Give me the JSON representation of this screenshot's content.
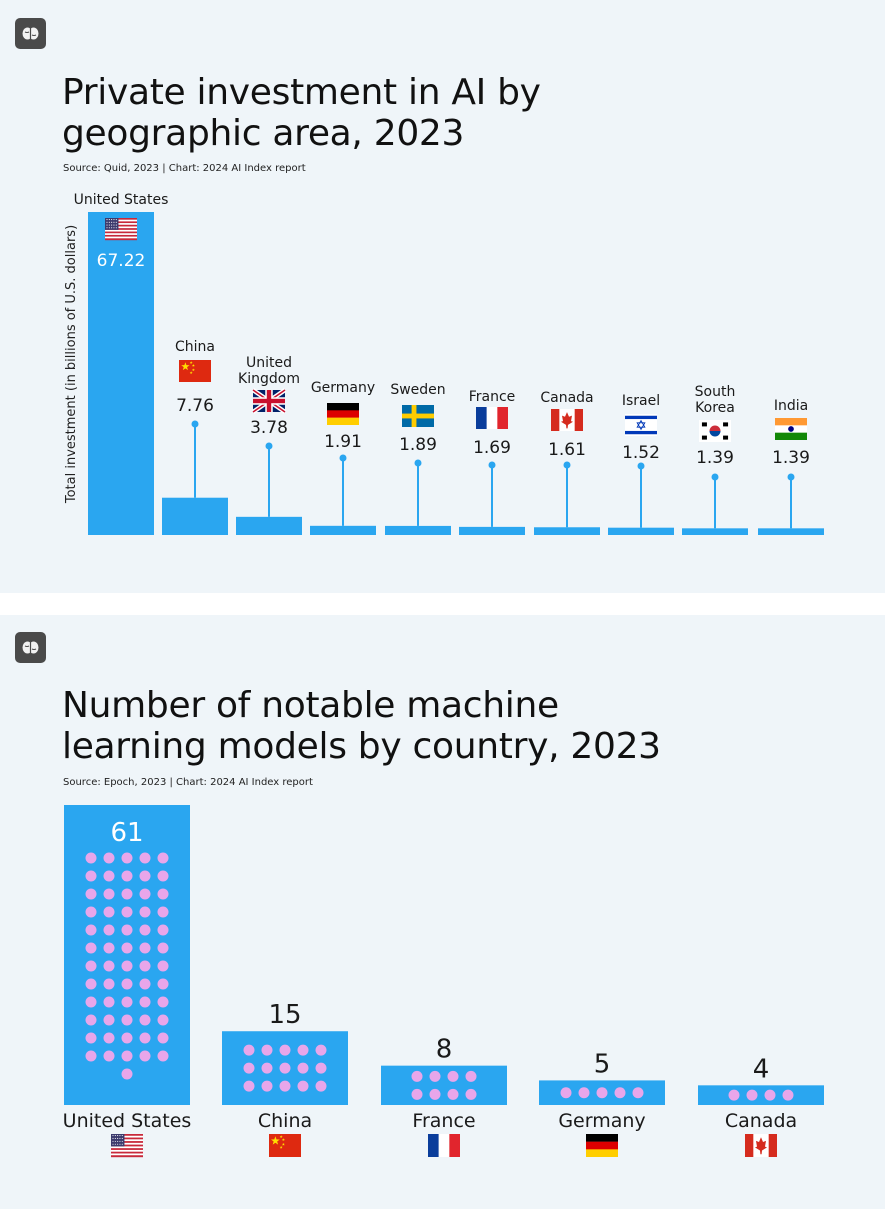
{
  "charts": {
    "investment": {
      "title_line1": "Private investment in AI by",
      "title_line2": "geographic area, 2023",
      "source": "Source: Quid, 2023 | Chart: 2024 AI Index report"
    },
    "models": {
      "title_line1": "Number of notable machine",
      "title_line2": "learning models by country, 2023",
      "source": "Source: Epoch, 2023 | Chart: 2024 AI Index report"
    }
  },
  "colors": {
    "bar": "#2aa6f0",
    "dot": "#e8a6ea",
    "panel": "#eff5f9"
  },
  "icons": {
    "badge": "brain-icon"
  },
  "chart_data": [
    {
      "type": "bar",
      "title": "Private investment in AI by geographic area, 2023",
      "ylabel": "Total investment (in billions of U.S. dollars)",
      "categories": [
        "United States",
        "China",
        "United Kingdom",
        "Germany",
        "Sweden",
        "France",
        "Canada",
        "Israel",
        "South Korea",
        "India"
      ],
      "values": [
        67.22,
        7.76,
        3.78,
        1.91,
        1.89,
        1.69,
        1.61,
        1.52,
        1.39,
        1.39
      ],
      "flags": [
        "us",
        "cn",
        "gb",
        "de",
        "se",
        "fr",
        "ca",
        "il",
        "kr",
        "in"
      ],
      "grid": false
    },
    {
      "type": "bar",
      "title": "Number of notable machine learning models by country, 2023",
      "categories": [
        "United States",
        "China",
        "France",
        "Germany",
        "Canada"
      ],
      "values": [
        61,
        15,
        8,
        5,
        4
      ],
      "flags": [
        "us",
        "cn",
        "fr",
        "de",
        "ca"
      ],
      "grid": false
    }
  ]
}
